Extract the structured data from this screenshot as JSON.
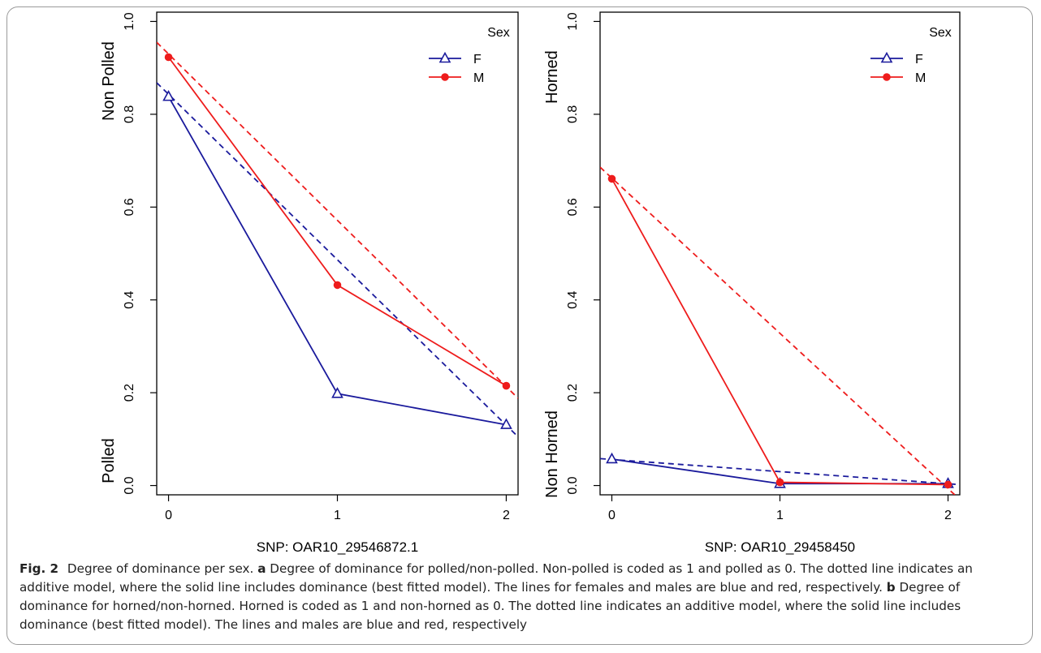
{
  "caption": {
    "figure_label": "Fig. 2",
    "title": "Degree of dominance per sex.",
    "part_a_label": "a",
    "part_a_text": "Degree of dominance for polled/non-polled. Non-polled is coded as 1 and polled as 0. The dotted line indicates an additive model, where the solid line includes dominance (best fitted model). The lines for females and males are blue and red, respectively.",
    "part_b_label": "b",
    "part_b_text": "Degree of dominance for horned/non-horned. Horned is coded as 1 and non-horned as 0. The dotted line indicates an additive model, where the solid line includes dominance (best fitted model). The lines and males are blue and red, respectively"
  },
  "colors": {
    "female": "#1a1a9c",
    "male": "#ee1c1c"
  },
  "chart_data": [
    {
      "type": "line",
      "xlabel": "SNP: OAR10_29546872.1",
      "ylabel_top": "Non Polled",
      "ylabel_bottom": "Polled",
      "x_ticks": [
        "0",
        "1",
        "2"
      ],
      "y_ticks": [
        "0.0",
        "0.2",
        "0.4",
        "0.6",
        "0.8",
        "1.0"
      ],
      "xlim": [
        -0.07,
        2.07
      ],
      "ylim": [
        -0.02,
        1.02
      ],
      "grid": false,
      "legend": {
        "title": "Sex",
        "position": "top-right",
        "entries": [
          "F",
          "M"
        ]
      },
      "series": [
        {
          "name": "F",
          "style": "solid",
          "marker": "triangle-open",
          "color": "#1a1a9c",
          "x": [
            0,
            1,
            2
          ],
          "y": [
            0.838,
            0.198,
            0.131
          ]
        },
        {
          "name": "M",
          "style": "solid",
          "marker": "circle-filled",
          "color": "#ee1c1c",
          "x": [
            0,
            1,
            2
          ],
          "y": [
            0.923,
            0.432,
            0.215
          ]
        }
      ],
      "additive_lines": [
        {
          "sex": "F",
          "style": "dashed",
          "color": "#1a1a9c",
          "x": [
            -0.07,
            2.07
          ],
          "y": [
            0.868,
            0.105
          ]
        },
        {
          "sex": "M",
          "style": "dashed",
          "color": "#ee1c1c",
          "x": [
            -0.07,
            2.07
          ],
          "y": [
            0.955,
            0.188
          ]
        }
      ]
    },
    {
      "type": "line",
      "xlabel": "SNP: OAR10_29458450",
      "ylabel_top": "Horned",
      "ylabel_bottom": "Non Horned",
      "x_ticks": [
        "0",
        "1",
        "2"
      ],
      "y_ticks": [
        "0.0",
        "0.2",
        "0.4",
        "0.6",
        "0.8",
        "1.0"
      ],
      "xlim": [
        -0.07,
        2.07
      ],
      "ylim": [
        -0.02,
        1.02
      ],
      "grid": false,
      "legend": {
        "title": "Sex",
        "position": "top-right",
        "entries": [
          "F",
          "M"
        ]
      },
      "series": [
        {
          "name": "F",
          "style": "solid",
          "marker": "triangle-open",
          "color": "#1a1a9c",
          "x": [
            0,
            1,
            2
          ],
          "y": [
            0.057,
            0.004,
            0.004
          ]
        },
        {
          "name": "M",
          "style": "solid",
          "marker": "circle-filled",
          "color": "#ee1c1c",
          "x": [
            0,
            1,
            2
          ],
          "y": [
            0.661,
            0.007,
            0.002
          ]
        }
      ],
      "additive_lines": [
        {
          "sex": "F",
          "style": "dashed",
          "color": "#1a1a9c",
          "x": [
            -0.07,
            2.07
          ],
          "y": [
            0.058,
            0.002
          ]
        },
        {
          "sex": "M",
          "style": "dashed",
          "color": "#ee1c1c",
          "x": [
            -0.07,
            2.07
          ],
          "y": [
            0.686,
            -0.03
          ]
        }
      ]
    }
  ]
}
